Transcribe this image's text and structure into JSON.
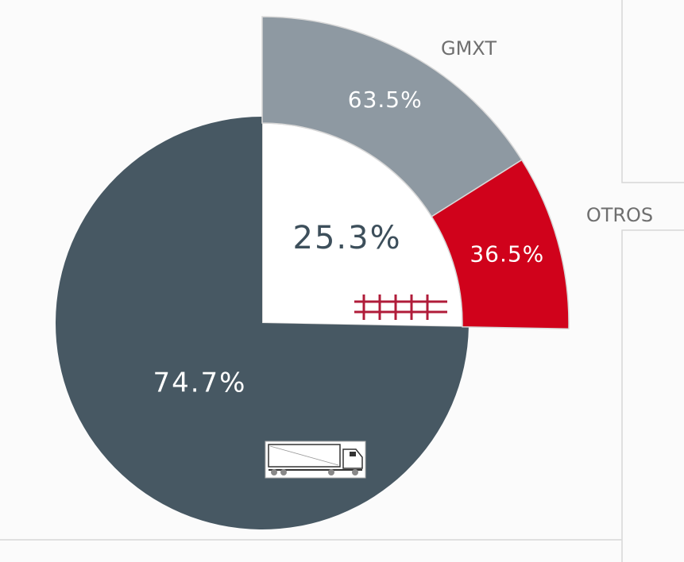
{
  "chart_data": {
    "type": "pie",
    "values": [
      25.3,
      74.7
    ],
    "value_labels": [
      "25.3%",
      "74.7%"
    ],
    "colors": [
      "#ffffff",
      "#475863"
    ],
    "breakdown": {
      "categories": [
        "GMXT",
        "OTROS"
      ],
      "values": [
        63.5,
        36.5
      ],
      "value_labels": [
        "63.5%",
        "36.5%"
      ],
      "colors": [
        "#8e99a2",
        "#d0021b"
      ]
    }
  }
}
